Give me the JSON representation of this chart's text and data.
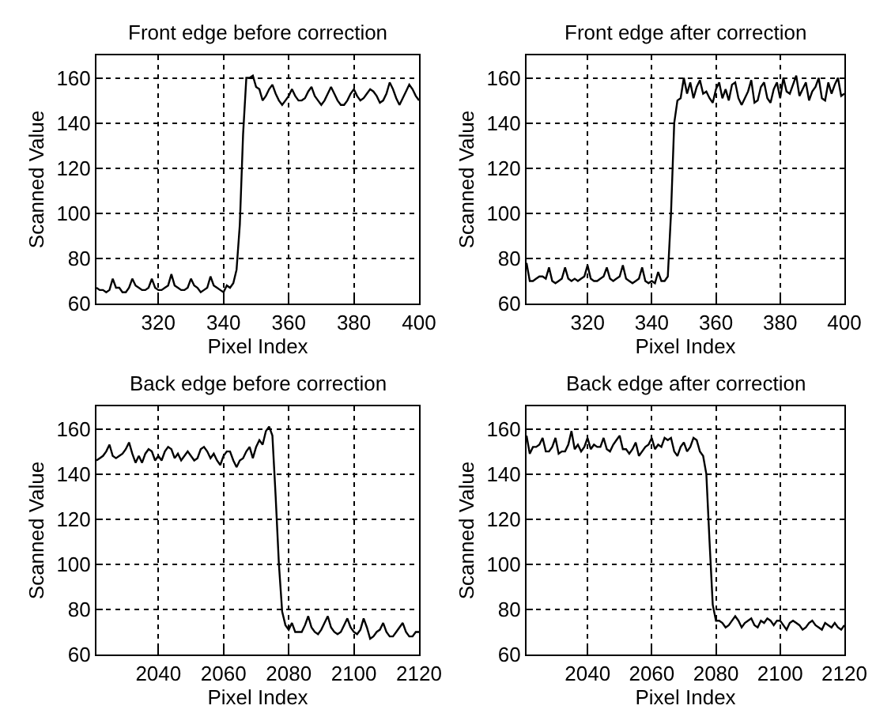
{
  "chart_data": [
    {
      "type": "line",
      "title": "Front edge before correction",
      "xlabel": "Pixel Index",
      "ylabel": "Scanned Value",
      "xlim": [
        301,
        400
      ],
      "ylim": [
        60,
        170
      ],
      "xticks": [
        320,
        340,
        360,
        380,
        400
      ],
      "yticks": [
        60,
        80,
        100,
        120,
        140,
        160
      ],
      "grid": true,
      "x": [
        301,
        302,
        303,
        304,
        305,
        306,
        307,
        308,
        309,
        310,
        311,
        312,
        313,
        314,
        315,
        316,
        317,
        318,
        319,
        320,
        321,
        322,
        323,
        324,
        325,
        326,
        327,
        328,
        329,
        330,
        331,
        332,
        333,
        334,
        335,
        336,
        337,
        338,
        339,
        340,
        341,
        342,
        343,
        344,
        345,
        346,
        347,
        348,
        349,
        350,
        351,
        352,
        353,
        354,
        355,
        356,
        357,
        358,
        359,
        360,
        361,
        362,
        363,
        364,
        365,
        366,
        367,
        368,
        369,
        370,
        371,
        372,
        373,
        374,
        375,
        376,
        377,
        378,
        379,
        380,
        381,
        382,
        383,
        384,
        385,
        386,
        387,
        388,
        389,
        390,
        391,
        392,
        393,
        394,
        395,
        396,
        397,
        398,
        399,
        400
      ],
      "series": [
        {
          "color": "#000000",
          "values": [
            67,
            66,
            66,
            65,
            66,
            71,
            67,
            67,
            65,
            65,
            67,
            71,
            68,
            67,
            66,
            66,
            67,
            71,
            67,
            66,
            66,
            67,
            68,
            73,
            68,
            67,
            66,
            66,
            67,
            71,
            68,
            67,
            65,
            66,
            67,
            72,
            68,
            67,
            66,
            65,
            68,
            67,
            69,
            75,
            95,
            135,
            160,
            160,
            161,
            156,
            155,
            150,
            152,
            155,
            157,
            153,
            150,
            148,
            150,
            152,
            155,
            152,
            150,
            150,
            151,
            154,
            156,
            152,
            150,
            148,
            150,
            153,
            156,
            153,
            150,
            148,
            148,
            150,
            153,
            155,
            152,
            150,
            151,
            153,
            155,
            154,
            152,
            149,
            150,
            153,
            158,
            155,
            151,
            148,
            151,
            154,
            157,
            155,
            152,
            150
          ]
        }
      ]
    },
    {
      "type": "line",
      "title": "Front edge after correction",
      "xlabel": "Pixel Index",
      "ylabel": "Scanned Value",
      "xlim": [
        301,
        400
      ],
      "ylim": [
        60,
        170
      ],
      "xticks": [
        320,
        340,
        360,
        380,
        400
      ],
      "yticks": [
        60,
        80,
        100,
        120,
        140,
        160
      ],
      "grid": true,
      "x": [
        301,
        302,
        303,
        304,
        305,
        306,
        307,
        308,
        309,
        310,
        311,
        312,
        313,
        314,
        315,
        316,
        317,
        318,
        319,
        320,
        321,
        322,
        323,
        324,
        325,
        326,
        327,
        328,
        329,
        330,
        331,
        332,
        333,
        334,
        335,
        336,
        337,
        338,
        339,
        340,
        341,
        342,
        343,
        344,
        345,
        346,
        347,
        348,
        349,
        350,
        351,
        352,
        353,
        354,
        355,
        356,
        357,
        358,
        359,
        360,
        361,
        362,
        363,
        364,
        365,
        366,
        367,
        368,
        369,
        370,
        371,
        372,
        373,
        374,
        375,
        376,
        377,
        378,
        379,
        380,
        381,
        382,
        383,
        384,
        385,
        386,
        387,
        388,
        389,
        390,
        391,
        392,
        393,
        394,
        395,
        396,
        397,
        398,
        399,
        400
      ],
      "series": [
        {
          "color": "#000000",
          "values": [
            78,
            70,
            70,
            71,
            72,
            72,
            71,
            76,
            70,
            69,
            70,
            71,
            76,
            71,
            70,
            71,
            70,
            71,
            72,
            77,
            71,
            70,
            70,
            71,
            72,
            76,
            71,
            70,
            71,
            72,
            77,
            71,
            70,
            69,
            70,
            71,
            76,
            70,
            69,
            70,
            69,
            74,
            70,
            70,
            72,
            100,
            140,
            150,
            151,
            160,
            153,
            158,
            151,
            156,
            159,
            153,
            154,
            151,
            149,
            155,
            158,
            151,
            155,
            150,
            157,
            158,
            151,
            148,
            151,
            154,
            159,
            149,
            150,
            156,
            158,
            151,
            149,
            155,
            158,
            151,
            160,
            154,
            153,
            157,
            161,
            152,
            155,
            158,
            150,
            154,
            156,
            160,
            151,
            150,
            158,
            153,
            157,
            160,
            152,
            153
          ]
        }
      ]
    },
    {
      "type": "line",
      "title": "Back edge before correction",
      "xlabel": "Pixel Index",
      "ylabel": "Scanned Value",
      "xlim": [
        2021,
        2120
      ],
      "ylim": [
        60,
        170
      ],
      "xticks": [
        2040,
        2060,
        2080,
        2100,
        2120
      ],
      "yticks": [
        60,
        80,
        100,
        120,
        140,
        160
      ],
      "grid": true,
      "x": [
        2021,
        2022,
        2023,
        2024,
        2025,
        2026,
        2027,
        2028,
        2029,
        2030,
        2031,
        2032,
        2033,
        2034,
        2035,
        2036,
        2037,
        2038,
        2039,
        2040,
        2041,
        2042,
        2043,
        2044,
        2045,
        2046,
        2047,
        2048,
        2049,
        2050,
        2051,
        2052,
        2053,
        2054,
        2055,
        2056,
        2057,
        2058,
        2059,
        2060,
        2061,
        2062,
        2063,
        2064,
        2065,
        2066,
        2067,
        2068,
        2069,
        2070,
        2071,
        2072,
        2073,
        2074,
        2075,
        2076,
        2077,
        2078,
        2079,
        2080,
        2081,
        2082,
        2083,
        2084,
        2085,
        2086,
        2087,
        2088,
        2089,
        2090,
        2091,
        2092,
        2093,
        2094,
        2095,
        2096,
        2097,
        2098,
        2099,
        2100,
        2101,
        2102,
        2103,
        2104,
        2105,
        2106,
        2107,
        2108,
        2109,
        2110,
        2111,
        2112,
        2113,
        2114,
        2115,
        2116,
        2117,
        2118,
        2119,
        2120
      ],
      "series": [
        {
          "color": "#000000",
          "values": [
            146,
            147,
            148,
            150,
            153,
            148,
            147,
            148,
            149,
            151,
            154,
            149,
            145,
            148,
            145,
            149,
            151,
            150,
            146,
            148,
            146,
            150,
            152,
            151,
            147,
            149,
            146,
            148,
            150,
            148,
            146,
            147,
            151,
            152,
            150,
            147,
            149,
            146,
            144,
            148,
            150,
            150,
            146,
            143,
            146,
            147,
            150,
            152,
            147,
            152,
            155,
            153,
            159,
            161,
            157,
            130,
            100,
            79,
            73,
            71,
            74,
            70,
            70,
            70,
            73,
            77,
            72,
            70,
            69,
            71,
            74,
            77,
            72,
            70,
            69,
            70,
            73,
            76,
            72,
            70,
            69,
            71,
            76,
            72,
            67,
            68,
            70,
            71,
            74,
            70,
            68,
            68,
            70,
            72,
            74,
            70,
            68,
            68,
            70,
            70
          ]
        }
      ]
    },
    {
      "type": "line",
      "title": "Back edge after correction",
      "xlabel": "Pixel Index",
      "ylabel": "Scanned Value",
      "xlim": [
        2021,
        2120
      ],
      "ylim": [
        60,
        170
      ],
      "xticks": [
        2040,
        2060,
        2080,
        2100,
        2120
      ],
      "yticks": [
        60,
        80,
        100,
        120,
        140,
        160
      ],
      "grid": true,
      "x": [
        2021,
        2022,
        2023,
        2024,
        2025,
        2026,
        2027,
        2028,
        2029,
        2030,
        2031,
        2032,
        2033,
        2034,
        2035,
        2036,
        2037,
        2038,
        2039,
        2040,
        2041,
        2042,
        2043,
        2044,
        2045,
        2046,
        2047,
        2048,
        2049,
        2050,
        2051,
        2052,
        2053,
        2054,
        2055,
        2056,
        2057,
        2058,
        2059,
        2060,
        2061,
        2062,
        2063,
        2064,
        2065,
        2066,
        2067,
        2068,
        2069,
        2070,
        2071,
        2072,
        2073,
        2074,
        2075,
        2076,
        2077,
        2078,
        2079,
        2080,
        2081,
        2082,
        2083,
        2084,
        2085,
        2086,
        2087,
        2088,
        2089,
        2090,
        2091,
        2092,
        2093,
        2094,
        2095,
        2096,
        2097,
        2098,
        2099,
        2100,
        2101,
        2102,
        2103,
        2104,
        2105,
        2106,
        2107,
        2108,
        2109,
        2110,
        2111,
        2112,
        2113,
        2114,
        2115,
        2116,
        2117,
        2118,
        2119,
        2120
      ],
      "series": [
        {
          "color": "#000000",
          "values": [
            157,
            149,
            152,
            152,
            153,
            156,
            150,
            150,
            152,
            156,
            149,
            150,
            150,
            153,
            159,
            151,
            153,
            150,
            152,
            156,
            151,
            153,
            152,
            152,
            156,
            151,
            150,
            153,
            155,
            157,
            151,
            151,
            149,
            151,
            154,
            148,
            150,
            152,
            153,
            156,
            151,
            153,
            152,
            156,
            155,
            156,
            150,
            148,
            152,
            154,
            150,
            152,
            156,
            155,
            150,
            148,
            140,
            110,
            82,
            75,
            75,
            74,
            72,
            73,
            75,
            77,
            75,
            72,
            74,
            75,
            76,
            73,
            72,
            75,
            74,
            76,
            75,
            73,
            75,
            75,
            73,
            71,
            74,
            75,
            74,
            73,
            71,
            72,
            74,
            75,
            73,
            72,
            71,
            74,
            73,
            72,
            74,
            72,
            71,
            73
          ]
        }
      ]
    }
  ]
}
